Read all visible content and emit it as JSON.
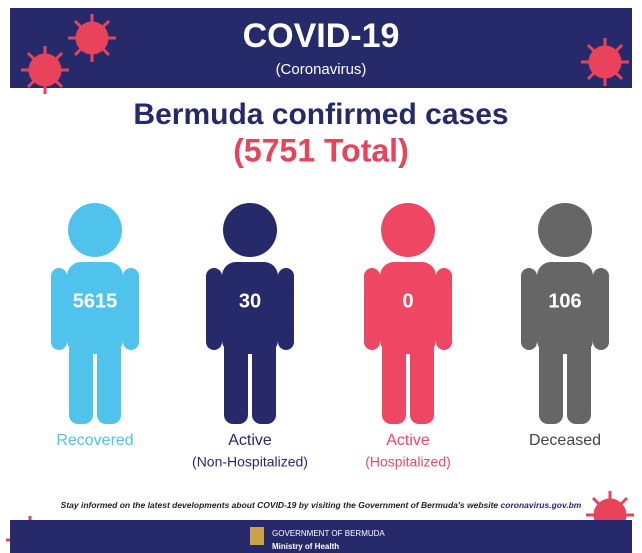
{
  "header": {
    "title": "COVID-19",
    "subtitle": "(Coronavirus)"
  },
  "heading": {
    "title": "Bermuda confirmed cases",
    "total": "(5751 Total)"
  },
  "figures": [
    {
      "count": 5615,
      "label": "Recovered"
    },
    {
      "count": 30,
      "label": "Active",
      "sublabel": "(Non-Hospitalized)"
    },
    {
      "count": 0,
      "label": "Active",
      "sublabel": "(Hospitalized)"
    },
    {
      "count": 106,
      "label": "Deceased"
    }
  ],
  "footer": {
    "note": "Stay informed on the latest developments about COVID-19 by visiting the Government of Bermuda's website",
    "link": "coronavirus.gov.bm",
    "org": "GOVERNMENT OF BERMUDA",
    "ministry": "Ministry of Health"
  }
}
